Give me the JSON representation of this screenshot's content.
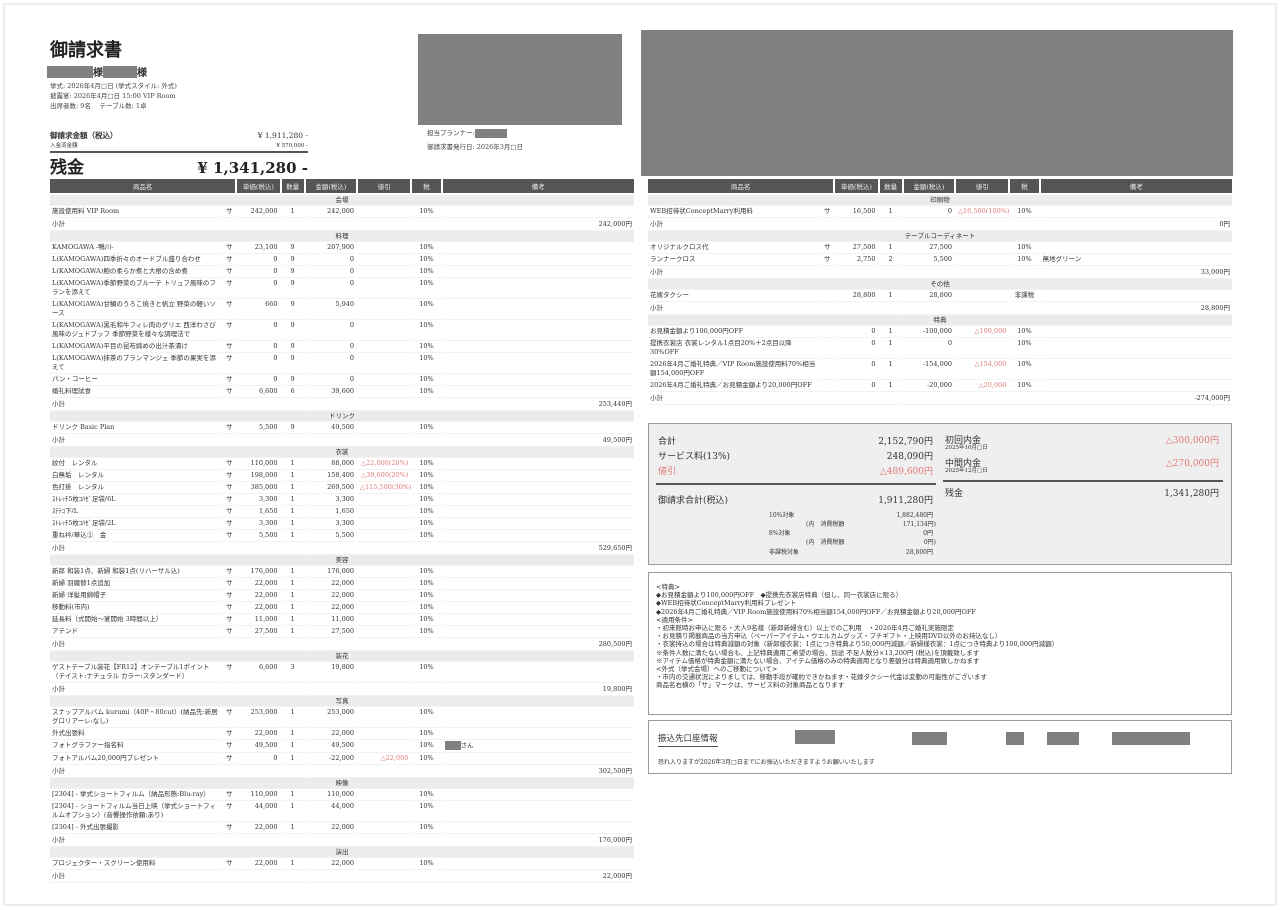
{
  "header": {
    "title": "御請求書",
    "honorific": "様",
    "ceremony": "挙式: 2026年4月□日 (挙式スタイル: 外式)",
    "reception": "披露宴: 2026年4月□日 15:00 VIP Room",
    "attendance": "出席者数: 9名　 テーブル数: 1卓",
    "billing_label": "御請求金額（税込）",
    "billing_value": "¥ 1,911,280 -",
    "paid_label": "入金済金額",
    "paid_value": "¥ 570,000 -",
    "balance_label": "残金",
    "balance_value": "¥ 1,341,280 -",
    "planner": "担当プランナー:",
    "issued": "御請求書発行日: 2026年3月□日"
  },
  "columns": [
    "商品名",
    "単価(税込)",
    "数量",
    "金額(税込)",
    "値引",
    "税",
    "備考"
  ],
  "subtotal_label": "小計",
  "left_sections": [
    {
      "title": "会場",
      "subtotal": "242,000円",
      "items": [
        [
          "施設使用料 VIP Room",
          "サ",
          "242,000",
          "1",
          "242,000",
          "",
          "10%",
          ""
        ]
      ]
    },
    {
      "title": "料理",
      "subtotal": "253,440円",
      "items": [
        [
          "KAMOGAWA -鴨川-",
          "サ",
          "23,100",
          "9",
          "207,900",
          "",
          "10%",
          ""
        ],
        [
          "L(KAMOGAWA)四季折々のオードブル盛り合わせ",
          "サ",
          "0",
          "9",
          "0",
          "",
          "10%",
          ""
        ],
        [
          "L(KAMOGAWA)鮑の柔らか煮と大根の含め煮",
          "サ",
          "0",
          "9",
          "0",
          "",
          "10%",
          ""
        ],
        [
          "L(KAMOGAWA)季節野菜のブルーテ トリュフ風味のフランを添えて",
          "サ",
          "0",
          "9",
          "0",
          "",
          "10%",
          ""
        ],
        [
          "L(KAMOGAWA)甘鯛のうろこ焼きと帆立 野菜の軽いソース",
          "サ",
          "660",
          "9",
          "5,940",
          "",
          "10%",
          ""
        ],
        [
          "L(KAMOGAWA)黒毛和牛フィレ肉のグリエ 西洋わさび風味のジュドブッフ 季節野菜を様々な調理法で",
          "サ",
          "0",
          "9",
          "0",
          "",
          "10%",
          ""
        ],
        [
          "L(KAMOGAWA)平目の昆布締めの出汁茶漬け",
          "サ",
          "0",
          "9",
          "0",
          "",
          "10%",
          ""
        ],
        [
          "L(KAMOGAWA)抹茶のブランマンジェ 季節の果実を添えて",
          "サ",
          "0",
          "9",
          "0",
          "",
          "10%",
          ""
        ],
        [
          "パン・コーヒー",
          "サ",
          "0",
          "9",
          "0",
          "",
          "10%",
          ""
        ],
        [
          "婚礼料理試食",
          "サ",
          "6,600",
          "6",
          "39,600",
          "",
          "10%",
          ""
        ]
      ]
    },
    {
      "title": "ドリンク",
      "subtotal": "49,500円",
      "items": [
        [
          "ドリンク Basic Plan",
          "サ",
          "5,500",
          "9",
          "49,500",
          "",
          "10%",
          ""
        ]
      ]
    },
    {
      "title": "衣裳",
      "subtotal": "529,650円",
      "items": [
        [
          "紋付　レンタル",
          "サ",
          "110,000",
          "1",
          "88,000",
          "△22,000(20%)",
          "10%",
          ""
        ],
        [
          "白無垢　レンタル",
          "サ",
          "198,000",
          "1",
          "158,400",
          "△39,600(20%)",
          "10%",
          ""
        ],
        [
          "色打掛　レンタル",
          "サ",
          "385,000",
          "1",
          "269,500",
          "△115,500(30%)",
          "10%",
          ""
        ],
        [
          "ｽﾄﾚｯﾁ5枚ｺﾊｾﾞ足袋/6L",
          "サ",
          "3,300",
          "1",
          "3,300",
          "",
          "10%",
          ""
        ],
        [
          "ｽﾃﾃｺ下/L",
          "サ",
          "1,650",
          "1",
          "1,650",
          "",
          "10%",
          ""
        ],
        [
          "ｽﾄﾚｯﾁ5枚ｺﾊｾﾞ足袋/2L",
          "サ",
          "3,300",
          "1",
          "3,300",
          "",
          "10%",
          ""
        ],
        [
          "重ね衿/華込②　金",
          "サ",
          "5,500",
          "1",
          "5,500",
          "",
          "10%",
          ""
        ]
      ]
    },
    {
      "title": "美容",
      "subtotal": "280,500円",
      "items": [
        [
          "新郎 和装1点、新婦 和装1点(リハーサル込)",
          "サ",
          "176,000",
          "1",
          "176,000",
          "",
          "10%",
          ""
        ],
        [
          "新婦 羽織替1点追加",
          "サ",
          "22,000",
          "1",
          "22,000",
          "",
          "10%",
          ""
        ],
        [
          "新婦 洋髪用綿帽子",
          "サ",
          "22,000",
          "1",
          "22,000",
          "",
          "10%",
          ""
        ],
        [
          "移動料(市内)",
          "サ",
          "22,000",
          "1",
          "22,000",
          "",
          "10%",
          ""
        ],
        [
          "延長料（式開始～宴開始 3時間以上）",
          "サ",
          "11,000",
          "1",
          "11,000",
          "",
          "10%",
          ""
        ],
        [
          "アテンド",
          "サ",
          "27,500",
          "1",
          "27,500",
          "",
          "10%",
          ""
        ]
      ]
    },
    {
      "title": "装花",
      "subtotal": "19,800円",
      "items": [
        [
          "ゲストテーブル装花【FR12】オンテーブル1ポイント（テイスト:ナチュラル カラー:スタンダード）",
          "サ",
          "6,600",
          "3",
          "19,800",
          "",
          "10%",
          ""
        ]
      ]
    },
    {
      "title": "写真",
      "subtotal": "302,500円",
      "items": [
        [
          "スナップアルバム kurumi（40P・80cut）(納品先:新居 グロリアーレ:なし)",
          "サ",
          "253,000",
          "1",
          "253,000",
          "",
          "10%",
          ""
        ],
        [
          "外式出張料",
          "サ",
          "22,000",
          "1",
          "22,000",
          "",
          "10%",
          ""
        ],
        [
          "フォトグラファー指名料",
          "サ",
          "49,500",
          "1",
          "49,500",
          "",
          "10%",
          "さん"
        ],
        [
          "フォトアルバム20,000円プレゼント",
          "サ",
          "0",
          "1",
          "-22,000",
          "△22,000",
          "10%",
          ""
        ]
      ]
    },
    {
      "title": "映像",
      "subtotal": "176,000円",
      "items": [
        [
          "[2304] - 挙式ショートフィルム（納品形態:Blu-ray）",
          "サ",
          "110,000",
          "1",
          "110,000",
          "",
          "10%",
          ""
        ],
        [
          "[2304] - ショートフィルム当日上映（挙式ショートフィルムオプション）(音響操作依頼:あり)",
          "サ",
          "44,000",
          "1",
          "44,000",
          "",
          "10%",
          ""
        ],
        [
          "[2304] - 外式出張撮影",
          "サ",
          "22,000",
          "1",
          "22,000",
          "",
          "10%",
          ""
        ]
      ]
    },
    {
      "title": "演出",
      "subtotal": "22,000円",
      "items": [
        [
          "プロジェクター・スクリーン使用料",
          "サ",
          "22,000",
          "1",
          "22,000",
          "",
          "10%",
          ""
        ]
      ]
    }
  ],
  "right_sections": [
    {
      "title": "印刷物",
      "subtotal": "0円",
      "items": [
        [
          "WEB招待状ConceptMarry利用料",
          "サ",
          "16,500",
          "1",
          "0",
          "△16,500(100%)",
          "10%",
          ""
        ]
      ]
    },
    {
      "title": "テーブルコーディネート",
      "subtotal": "33,000円",
      "items": [
        [
          "オリジナルクロス代",
          "サ",
          "27,500",
          "1",
          "27,500",
          "",
          "10%",
          ""
        ],
        [
          "ランナークロス",
          "サ",
          "2,750",
          "2",
          "5,500",
          "",
          "10%",
          "無地グリーン"
        ]
      ]
    },
    {
      "title": "その他",
      "subtotal": "28,800円",
      "items": [
        [
          "花嫁タクシー",
          "",
          "28,800",
          "1",
          "28,800",
          "",
          "非課税",
          ""
        ]
      ]
    },
    {
      "title": "特典",
      "subtotal": "-274,000円",
      "items": [
        [
          "お見積金額より100,000円OFF",
          "",
          "0",
          "1",
          "-100,000",
          "△100,000",
          "10%",
          ""
        ],
        [
          "提携衣裳店 衣裳レンタル1点目20%＋2点目以降30%OFF",
          "",
          "0",
          "1",
          "0",
          "",
          "10%",
          ""
        ],
        [
          "2026年4月ご婚礼特典／VIP Room施設使用料70%相当額154,000円OFF",
          "",
          "0",
          "1",
          "-154,000",
          "△154,000",
          "10%",
          ""
        ],
        [
          "2026年4月ご婚礼特典／お見積金額より20,000円OFF",
          "",
          "0",
          "1",
          "-20,000",
          "△20,000",
          "10%",
          ""
        ]
      ]
    }
  ],
  "summary": {
    "total_label": "合計",
    "total": "2,152,790円",
    "service_label": "サービス料(13%)",
    "service": "248,090円",
    "discount_label": "値引",
    "discount": "△489,600円",
    "grand_label": "御請求合計(税込)",
    "grand": "1,911,280円",
    "tax10_label": "10%対象",
    "tax10": "1,882,480円",
    "tax10_inner_label": "(内　消費税額",
    "tax10_inner": "171,134円)",
    "tax8_label": "8%対象",
    "tax8": "0円",
    "tax8_inner_label": "(内　消費税額",
    "tax8_inner": "0円)",
    "nontax_label": "非課税対象",
    "nontax": "28,800円",
    "dep1_label": "初回内金",
    "dep1_date": "2025年10月□日",
    "dep1": "△300,000円",
    "dep2_label": "中間内金",
    "dep2_date": "2025年12月□日",
    "dep2": "△270,000円",
    "balance_label": "残金",
    "balance": "1,341,280円"
  },
  "notes": [
    "<特典>",
    "◆お見積金額より100,000円OFF　◆提携先衣裳店特典（但し、同一衣裳店に限る）",
    "◆WEB招待状ConceptMarry利用料プレゼント",
    "◆2026年4月ご婚礼特典／VIP Room施設使用料70%相当額154,000円OFF／お見積金額より20,000円OFF",
    "<適用条件>",
    "・初来館時お申込に限る・大人9名様（新郎新婦含む）以上でのご利用　・2026年4月ご婚礼実施限定",
    "・お見積り掲載商品の当方申込（ペーパーアイテム・ウエルカムグッズ・プチギフト・上映用DVD以外のお持込なし）",
    "・衣裳持込の場合は特典減額の対象（新郎様衣裳：1点につき特典より50,000円減額／新婦様衣裳：1点につき特典より100,000円減額）",
    "※条件人数に満たない場合も、上記特典適用ご希望の場合、別途 不足人数分×13,200円 (税込)を頂戴致します",
    "※アイテム価格が特典金額に満たない場合、アイテム価格のみの特典適用となり差額分は特典適用致しかねます",
    "<外式（挙式会場）へのご移動について>",
    "・市内の交通状況によりましては、移動手段が確約できかねます・花嫁タクシー代金は変動の可能性がございます",
    "商品名右横の「サ」マークは、サービス料の対象商品となります"
  ],
  "bank": {
    "title": "振込先口座情報",
    "message": "恐れ入りますが2026年3月□日までにお振込いただきますようお願いいたします"
  }
}
